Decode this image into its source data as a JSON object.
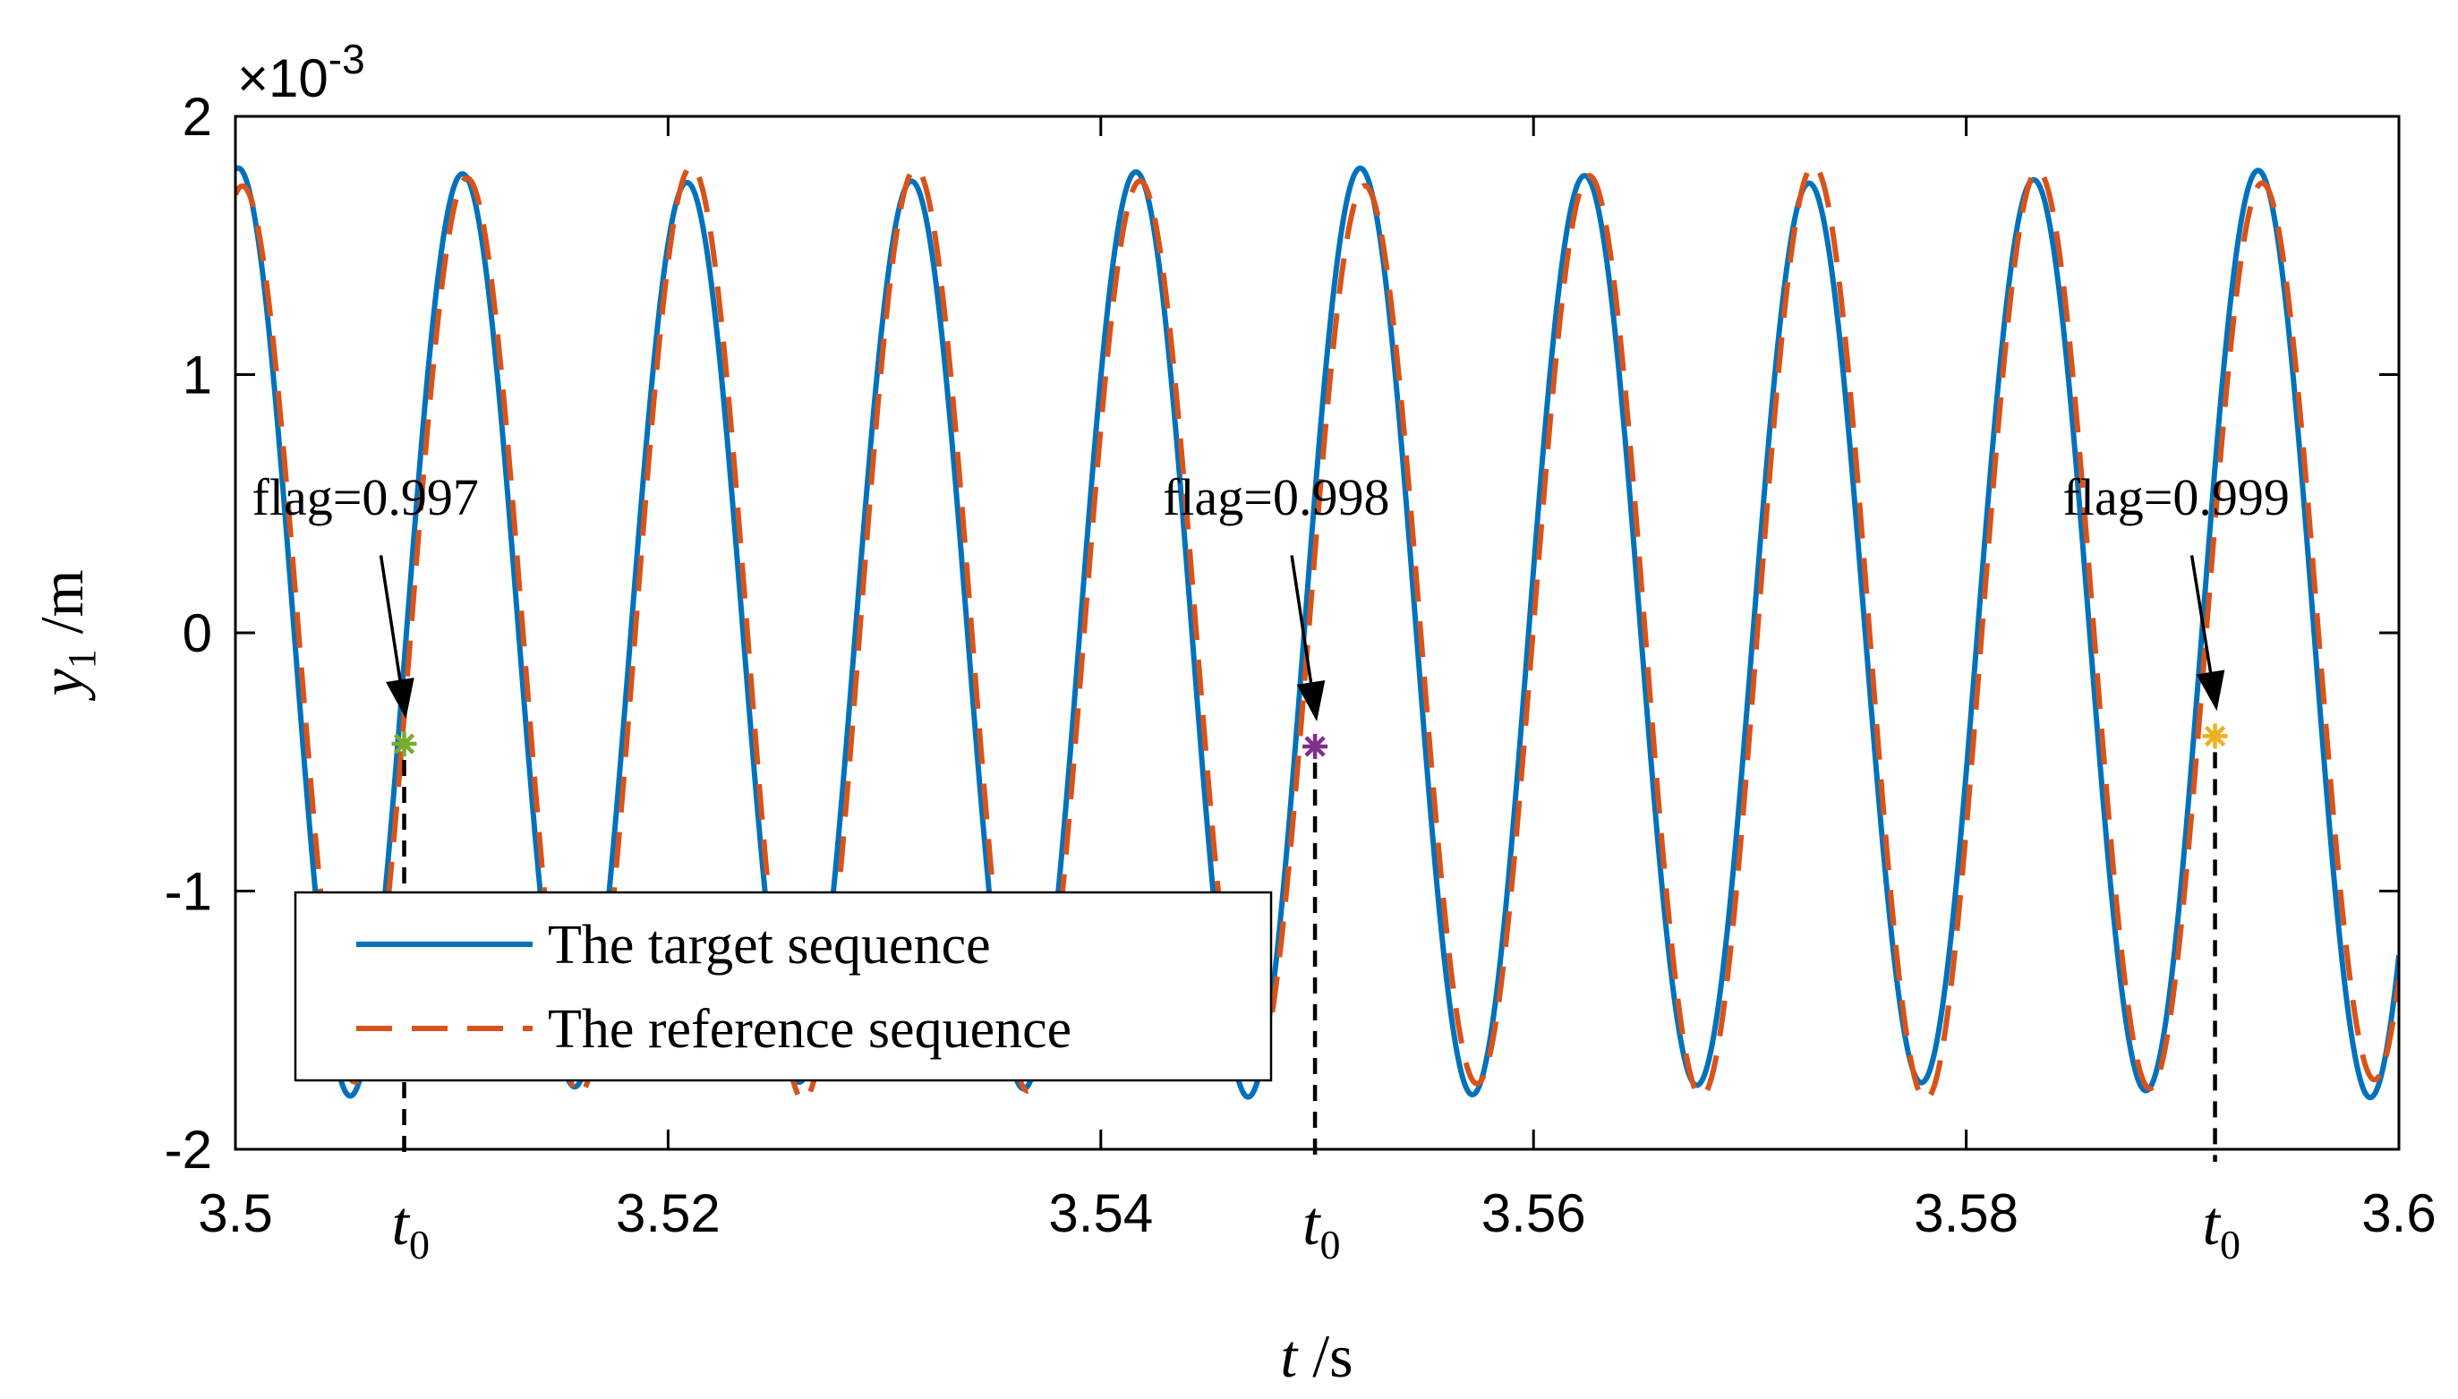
{
  "chart_data": {
    "type": "line",
    "title": "",
    "xlabel": {
      "var": "t",
      "unit": " /s"
    },
    "ylabel": {
      "var": "y",
      "sub": "1",
      "unit": " /m"
    },
    "y_multiplier": {
      "base": "×10",
      "exponent": "-3"
    },
    "xlim": [
      3.5,
      3.6
    ],
    "ylim": [
      -2,
      2
    ],
    "x_ticks": [
      "3.5",
      "3.52",
      "3.54",
      "3.56",
      "3.58",
      "3.6"
    ],
    "y_ticks": [
      "-2",
      "-1",
      "0",
      "1",
      "2"
    ],
    "x_tick_values": [
      3.5,
      3.52,
      3.54,
      3.56,
      3.58,
      3.6
    ],
    "y_tick_values": [
      -2,
      -1,
      0,
      1,
      2
    ],
    "t0_label": {
      "var": "t",
      "sub": "0"
    },
    "series": [
      {
        "name": "The target sequence",
        "color": "#0072BD",
        "style": "solid",
        "frequency_hz": 96.4,
        "amplitude": 1.77,
        "phase_ref_x": 3.5075,
        "amp_mod": 0.03,
        "amp_mod_freq_hz": 20
      },
      {
        "name": "The reference sequence",
        "color": "#D95319",
        "style": "dashed",
        "frequency_hz": 96.4,
        "amplitude": 1.77,
        "phase_ref_x": 3.5077,
        "amp_mod": -0.04,
        "amp_mod_freq_hz": 20
      }
    ],
    "annotations": [
      {
        "text": "flag=0.997",
        "x": 3.5078,
        "y": -0.43,
        "marker_color": "#77AC30"
      },
      {
        "text": "flag=0.998",
        "x": 3.5499,
        "y": -0.44,
        "marker_color": "#7E2F8E"
      },
      {
        "text": "flag=0.999",
        "x": 3.5915,
        "y": -0.4,
        "marker_color": "#EDB120"
      }
    ],
    "legend": {
      "position": "bottom-left"
    },
    "grid": false
  }
}
